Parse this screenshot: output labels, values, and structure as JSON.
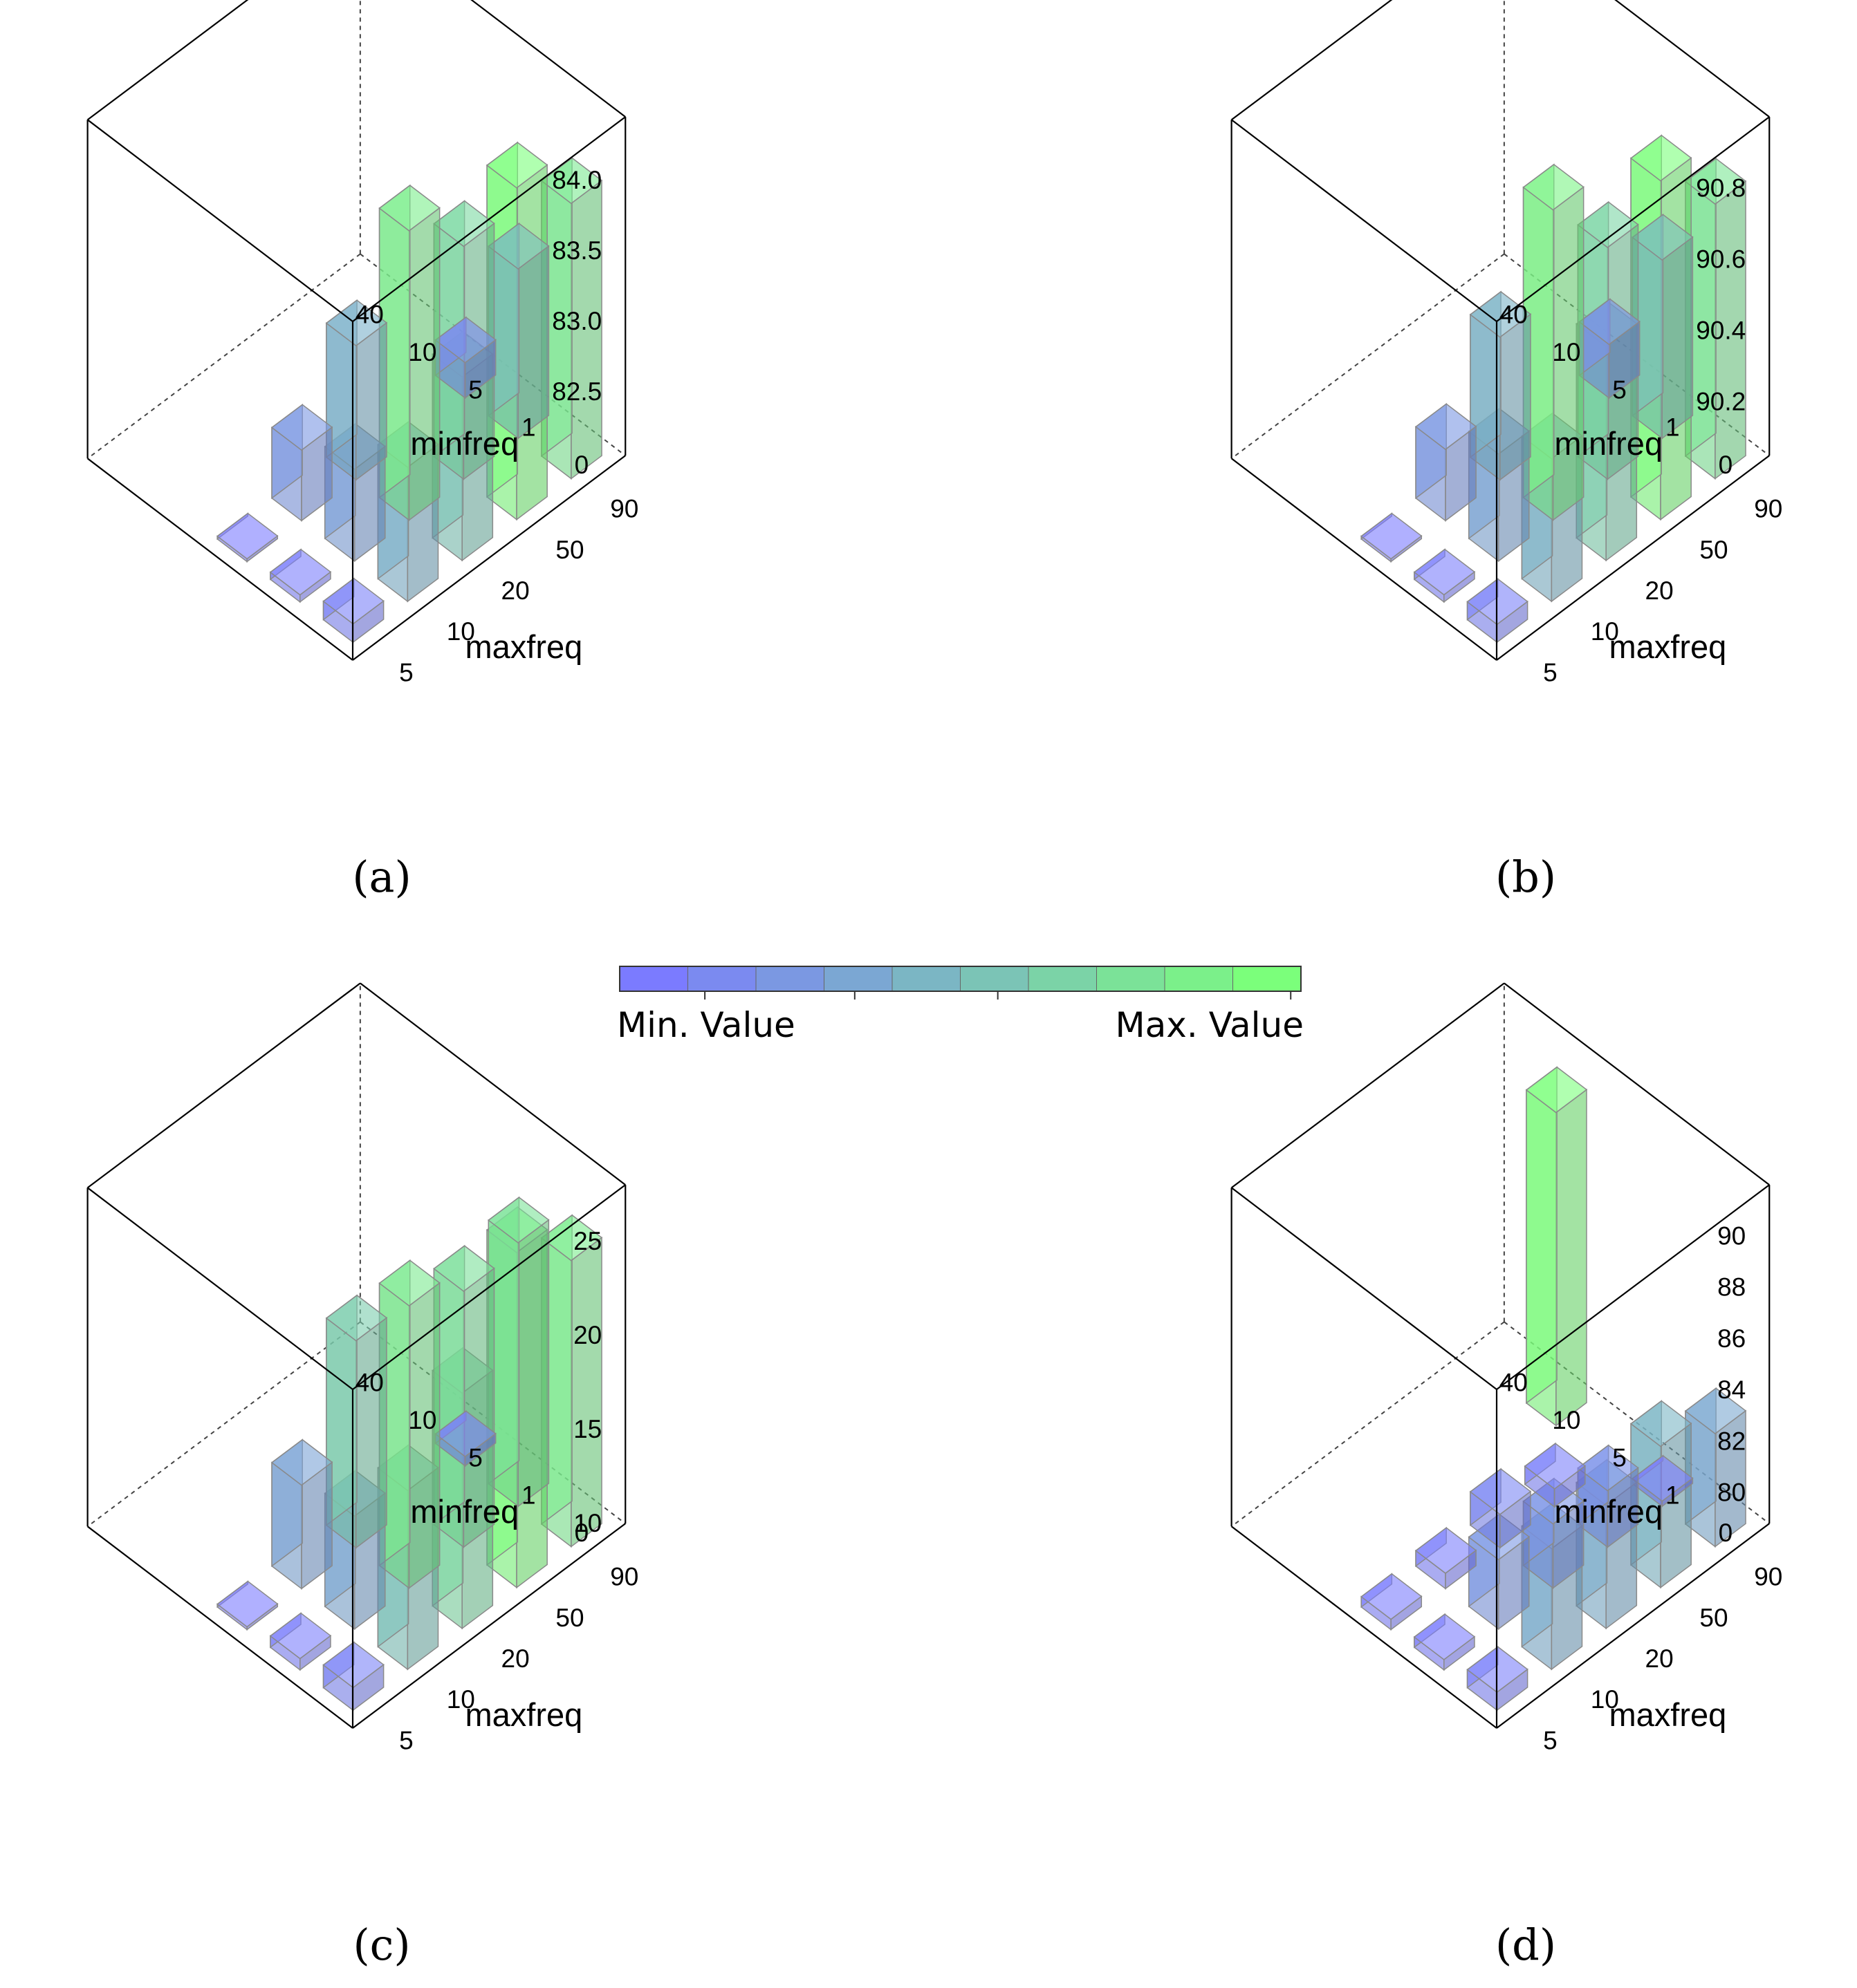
{
  "colors": {
    "min": "#7b7bff",
    "max": "#7bff7b",
    "edge": "#8a8a8a",
    "box": "#000000"
  },
  "colorbar": {
    "min_label": "Min. Value",
    "max_label": "Max. Value",
    "steps": 10
  },
  "axes": {
    "minfreq_label": "minfreq",
    "maxfreq_label": "maxfreq",
    "minfreq_ticks": [
      "0",
      "1",
      "5",
      "10",
      "40"
    ],
    "maxfreq_ticks": [
      "5",
      "10",
      "20",
      "50",
      "90"
    ]
  },
  "chart_data": [
    {
      "type": "bar3d",
      "caption": "(a)",
      "zlim": [
        82.05,
        84.45
      ],
      "zticks": [
        "82.5",
        "83.0",
        "83.5",
        "84.0"
      ],
      "zvals": [
        82.5,
        83.0,
        83.5,
        84.0
      ],
      "bars": [
        {
          "minfreq": "0",
          "maxfreq": "5",
          "value": 82.18
        },
        {
          "minfreq": "0",
          "maxfreq": "10",
          "value": 83.0
        },
        {
          "minfreq": "0",
          "maxfreq": "20",
          "value": 83.35
        },
        {
          "minfreq": "0",
          "maxfreq": "50",
          "value": 84.4
        },
        {
          "minfreq": "0",
          "maxfreq": "90",
          "value": 84.0
        },
        {
          "minfreq": "1",
          "maxfreq": "5",
          "value": 82.1
        },
        {
          "minfreq": "1",
          "maxfreq": "10",
          "value": 82.7
        },
        {
          "minfreq": "1",
          "maxfreq": "20",
          "value": 84.1
        },
        {
          "minfreq": "1",
          "maxfreq": "50",
          "value": 83.7
        },
        {
          "minfreq": "1",
          "maxfreq": "90",
          "value": 83.25
        },
        {
          "minfreq": "5",
          "maxfreq": "5",
          "value": 82.05
        },
        {
          "minfreq": "5",
          "maxfreq": "10",
          "value": 82.55
        },
        {
          "minfreq": "5",
          "maxfreq": "20",
          "value": 83.0
        },
        {
          "minfreq": "5",
          "maxfreq": "90",
          "value": 82.3
        }
      ]
    },
    {
      "type": "bar3d",
      "caption": "(b)",
      "zlim": [
        90.05,
        91.0
      ],
      "zticks": [
        "90.2",
        "90.4",
        "90.6",
        "90.8"
      ],
      "zvals": [
        90.2,
        90.4,
        90.6,
        90.8
      ],
      "bars": [
        {
          "minfreq": "0",
          "maxfreq": "5",
          "value": 90.1
        },
        {
          "minfreq": "0",
          "maxfreq": "10",
          "value": 90.45
        },
        {
          "minfreq": "0",
          "maxfreq": "20",
          "value": 90.65
        },
        {
          "minfreq": "0",
          "maxfreq": "50",
          "value": 91.0
        },
        {
          "minfreq": "0",
          "maxfreq": "90",
          "value": 90.82
        },
        {
          "minfreq": "1",
          "maxfreq": "5",
          "value": 90.07
        },
        {
          "minfreq": "1",
          "maxfreq": "10",
          "value": 90.35
        },
        {
          "minfreq": "1",
          "maxfreq": "20",
          "value": 90.92
        },
        {
          "minfreq": "1",
          "maxfreq": "50",
          "value": 90.7
        },
        {
          "minfreq": "1",
          "maxfreq": "90",
          "value": 90.55
        },
        {
          "minfreq": "5",
          "maxfreq": "5",
          "value": 90.05
        },
        {
          "minfreq": "5",
          "maxfreq": "10",
          "value": 90.25
        },
        {
          "minfreq": "5",
          "maxfreq": "20",
          "value": 90.45
        },
        {
          "minfreq": "5",
          "maxfreq": "90",
          "value": 90.2
        }
      ]
    },
    {
      "type": "bar3d",
      "caption": "(c)",
      "zlim": [
        10,
        28
      ],
      "zticks": [
        "10",
        "15",
        "20",
        "25"
      ],
      "zvals": [
        10,
        15,
        20,
        25
      ],
      "bars": [
        {
          "minfreq": "0",
          "maxfreq": "5",
          "value": 11.2
        },
        {
          "minfreq": "0",
          "maxfreq": "10",
          "value": 19.5
        },
        {
          "minfreq": "0",
          "maxfreq": "20",
          "value": 22.5
        },
        {
          "minfreq": "0",
          "maxfreq": "50",
          "value": 27.8
        },
        {
          "minfreq": "0",
          "maxfreq": "90",
          "value": 25.2
        },
        {
          "minfreq": "1",
          "maxfreq": "5",
          "value": 10.6
        },
        {
          "minfreq": "1",
          "maxfreq": "10",
          "value": 16.0
        },
        {
          "minfreq": "1",
          "maxfreq": "20",
          "value": 25.0
        },
        {
          "minfreq": "1",
          "maxfreq": "50",
          "value": 23.6
        },
        {
          "minfreq": "1",
          "maxfreq": "90",
          "value": 24.0
        },
        {
          "minfreq": "5",
          "maxfreq": "5",
          "value": 10.0
        },
        {
          "minfreq": "5",
          "maxfreq": "10",
          "value": 15.5
        },
        {
          "minfreq": "5",
          "maxfreq": "20",
          "value": 21.0
        },
        {
          "minfreq": "5",
          "maxfreq": "90",
          "value": 10.5
        }
      ]
    },
    {
      "type": "bar3d",
      "caption": "(d)",
      "zlim": [
        78.8,
        92.0
      ],
      "zticks": [
        "80",
        "82",
        "84",
        "86",
        "88",
        "90"
      ],
      "zvals": [
        80,
        82,
        84,
        86,
        88,
        90
      ],
      "bars": [
        {
          "minfreq": "0",
          "maxfreq": "5",
          "value": 79.5
        },
        {
          "minfreq": "0",
          "maxfreq": "10",
          "value": 83.5
        },
        {
          "minfreq": "0",
          "maxfreq": "20",
          "value": 83.6
        },
        {
          "minfreq": "0",
          "maxfreq": "50",
          "value": 84.3
        },
        {
          "minfreq": "0",
          "maxfreq": "90",
          "value": 83.2
        },
        {
          "minfreq": "1",
          "maxfreq": "5",
          "value": 79.2
        },
        {
          "minfreq": "1",
          "maxfreq": "10",
          "value": 81.5
        },
        {
          "minfreq": "1",
          "maxfreq": "20",
          "value": 81.3
        },
        {
          "minfreq": "1",
          "maxfreq": "50",
          "value": 81.0
        },
        {
          "minfreq": "1",
          "maxfreq": "90",
          "value": 79.0
        },
        {
          "minfreq": "5",
          "maxfreq": "5",
          "value": 79.2
        },
        {
          "minfreq": "5",
          "maxfreq": "10",
          "value": 79.4
        },
        {
          "minfreq": "5",
          "maxfreq": "20",
          "value": 80.1
        },
        {
          "minfreq": "5",
          "maxfreq": "50",
          "value": 79.5
        },
        {
          "minfreq": "10",
          "maxfreq": "90",
          "value": 91.0
        }
      ]
    }
  ]
}
